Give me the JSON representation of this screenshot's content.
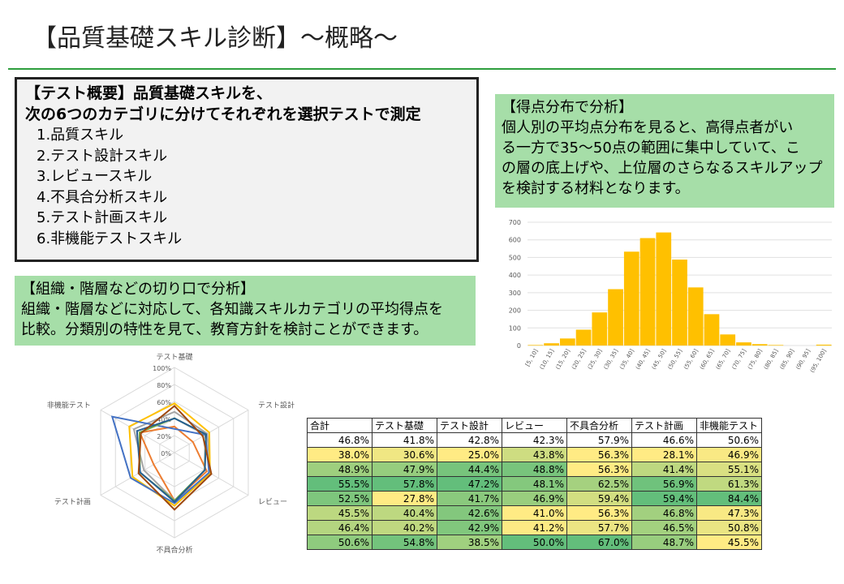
{
  "title": "【品質基礎スキル診断】～概略～",
  "overview": {
    "heading1": "【テスト概要】品質基礎スキルを、",
    "heading2": "次の6つのカテゴリに分けてそれぞれを選択テストで測定",
    "items": [
      "1.品質スキル",
      "2.テスト設計スキル",
      "3.レビュースキル",
      "4.不具合分析スキル",
      "5.テスト計画スキル",
      "6.非機能テストスキル"
    ]
  },
  "org_box": {
    "heading": "【組織・階層などの切り口で分析】",
    "line1": "組織・階層などに対応して、各知識スキルカテゴリの平均得点を",
    "line2": "比較。分類別の特性を見て、教育方針を検討ことができます。"
  },
  "dist_box": {
    "heading": "【得点分布で分析】",
    "line1": "個人別の平均点分布を見ると、高得点者がい",
    "line2": "る一方で35～50点の範囲に集中していて、こ",
    "line3": "の層の底上げや、上位層のさらなるスキルアップ",
    "line4": "を検討する材料となります。"
  },
  "colors": {
    "bar": "#ffc000",
    "green_box": "#a6dea8",
    "rule": "#2e9e3e",
    "scale_low": "#ffeb84",
    "scale_high": "#63be7b"
  },
  "chart_data": [
    {
      "type": "bar",
      "categories": [
        "[5, 10]",
        "(10, 15]",
        "(15, 20]",
        "(20, 25]",
        "(25, 30]",
        "(30, 35]",
        "(35, 40]",
        "(40, 45]",
        "(45, 50]",
        "(50, 55]",
        "(55, 60]",
        "(60, 65]",
        "(65, 70]",
        "(70, 75]",
        "(75, 80]",
        "(80, 85]",
        "(85, 90]",
        "(90, 95]",
        "(95, 100]"
      ],
      "values": [
        3,
        13,
        40,
        90,
        188,
        320,
        533,
        610,
        642,
        488,
        330,
        178,
        63,
        18,
        8,
        3,
        0,
        0,
        5
      ],
      "ylim": [
        0,
        700
      ],
      "yticks": [
        0,
        100,
        200,
        300,
        400,
        500,
        600,
        700
      ],
      "grid": true
    },
    {
      "type": "radar",
      "axes": [
        "テスト基礎",
        "テスト設計",
        "レビュー",
        "不具合分析",
        "テスト計画",
        "非機能テスト"
      ],
      "rticks": [
        "0%",
        "20%",
        "40%",
        "60%",
        "80%",
        "100%"
      ],
      "rlim": [
        0,
        100
      ],
      "series": [
        {
          "color": "#ed7d31",
          "values": [
            30.6,
            25.0,
            43.8,
            56.3,
            28.1,
            46.9
          ]
        },
        {
          "color": "#a5a5a5",
          "values": [
            47.9,
            44.4,
            48.8,
            56.3,
            41.4,
            55.1
          ]
        },
        {
          "color": "#ffc000",
          "values": [
            57.8,
            47.2,
            48.1,
            62.5,
            56.9,
            61.3
          ]
        },
        {
          "color": "#4472c4",
          "values": [
            27.8,
            41.7,
            46.9,
            59.4,
            59.4,
            84.4
          ]
        },
        {
          "color": "#70ad47",
          "values": [
            40.4,
            42.6,
            41.0,
            56.3,
            46.8,
            47.3
          ]
        },
        {
          "color": "#255e91",
          "values": [
            40.2,
            42.9,
            41.2,
            57.7,
            46.5,
            50.8
          ]
        },
        {
          "color": "#9e480e",
          "values": [
            54.8,
            38.5,
            50.0,
            67.0,
            48.7,
            45.5
          ]
        }
      ]
    },
    {
      "type": "table",
      "headers": [
        "合計",
        "テスト基礎",
        "テスト設計",
        "レビュー",
        "不具合分析",
        "テスト計画",
        "非機能テスト"
      ],
      "rows": [
        [
          "46.8%",
          "41.8%",
          "42.8%",
          "42.3%",
          "57.9%",
          "46.6%",
          "50.6%"
        ],
        [
          "38.0%",
          "30.6%",
          "25.0%",
          "43.8%",
          "56.3%",
          "28.1%",
          "46.9%"
        ],
        [
          "48.9%",
          "47.9%",
          "44.4%",
          "48.8%",
          "56.3%",
          "41.4%",
          "55.1%"
        ],
        [
          "55.5%",
          "57.8%",
          "47.2%",
          "48.1%",
          "62.5%",
          "56.9%",
          "61.3%"
        ],
        [
          "52.5%",
          "27.8%",
          "41.7%",
          "46.9%",
          "59.4%",
          "59.4%",
          "84.4%"
        ],
        [
          "45.5%",
          "40.4%",
          "42.6%",
          "41.0%",
          "56.3%",
          "46.8%",
          "47.3%"
        ],
        [
          "46.4%",
          "40.2%",
          "42.9%",
          "41.2%",
          "57.7%",
          "46.5%",
          "50.8%"
        ],
        [
          "50.6%",
          "54.8%",
          "38.5%",
          "50.0%",
          "67.0%",
          "48.7%",
          "45.5%"
        ]
      ]
    }
  ]
}
